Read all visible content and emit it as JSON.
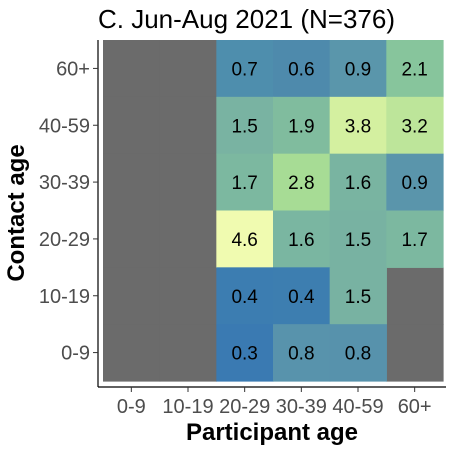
{
  "chart_data": {
    "type": "heatmap",
    "title": "C. Jun-Aug 2021 (N=376)",
    "xlabel": "Participant age",
    "ylabel": "Contact age",
    "x_categories": [
      "0-9",
      "10-19",
      "20-29",
      "30-39",
      "40-59",
      "60+"
    ],
    "y_categories": [
      "0-9",
      "10-19",
      "20-29",
      "30-39",
      "40-59",
      "60+"
    ],
    "missing_color": "#6b6b6b",
    "cells": [
      {
        "x": "20-29",
        "y": "60+",
        "value": 0.7,
        "color": "#4e8ead"
      },
      {
        "x": "30-39",
        "y": "60+",
        "value": 0.6,
        "color": "#4e8aac"
      },
      {
        "x": "40-59",
        "y": "60+",
        "value": 0.9,
        "color": "#5a96ab"
      },
      {
        "x": "60+",
        "y": "60+",
        "value": 2.1,
        "color": "#87c59c"
      },
      {
        "x": "20-29",
        "y": "40-59",
        "value": 1.5,
        "color": "#79b3a2"
      },
      {
        "x": "30-39",
        "y": "40-59",
        "value": 1.9,
        "color": "#80bc9e"
      },
      {
        "x": "40-59",
        "y": "40-59",
        "value": 3.8,
        "color": "#d4f0a0"
      },
      {
        "x": "60+",
        "y": "40-59",
        "value": 3.2,
        "color": "#bde59a"
      },
      {
        "x": "20-29",
        "y": "30-39",
        "value": 1.7,
        "color": "#7cb8a0"
      },
      {
        "x": "30-39",
        "y": "30-39",
        "value": 2.8,
        "color": "#a7dc95"
      },
      {
        "x": "40-59",
        "y": "30-39",
        "value": 1.6,
        "color": "#79b4a1"
      },
      {
        "x": "60+",
        "y": "30-39",
        "value": 0.9,
        "color": "#5a95ab"
      },
      {
        "x": "20-29",
        "y": "20-29",
        "value": 4.6,
        "color": "#f0fbb0"
      },
      {
        "x": "30-39",
        "y": "20-29",
        "value": 1.6,
        "color": "#7ab6a1"
      },
      {
        "x": "40-59",
        "y": "20-29",
        "value": 1.5,
        "color": "#78b2a2"
      },
      {
        "x": "60+",
        "y": "20-29",
        "value": 1.7,
        "color": "#7cb8a0"
      },
      {
        "x": "20-29",
        "y": "10-19",
        "value": 0.4,
        "color": "#3c7db1"
      },
      {
        "x": "30-39",
        "y": "10-19",
        "value": 0.4,
        "color": "#3d7eb0"
      },
      {
        "x": "40-59",
        "y": "10-19",
        "value": 1.5,
        "color": "#78b2a2"
      },
      {
        "x": "20-29",
        "y": "0-9",
        "value": 0.3,
        "color": "#3a7ab2"
      },
      {
        "x": "30-39",
        "y": "0-9",
        "value": 0.8,
        "color": "#5893ac"
      },
      {
        "x": "40-59",
        "y": "0-9",
        "value": 0.8,
        "color": "#5792ac"
      }
    ],
    "missing_cells": [
      {
        "x": "0-9",
        "y": "60+"
      },
      {
        "x": "0-9",
        "y": "40-59"
      },
      {
        "x": "0-9",
        "y": "30-39"
      },
      {
        "x": "0-9",
        "y": "20-29"
      },
      {
        "x": "0-9",
        "y": "10-19"
      },
      {
        "x": "0-9",
        "y": "0-9"
      },
      {
        "x": "10-19",
        "y": "60+"
      },
      {
        "x": "10-19",
        "y": "40-59"
      },
      {
        "x": "10-19",
        "y": "30-39"
      },
      {
        "x": "10-19",
        "y": "20-29"
      },
      {
        "x": "10-19",
        "y": "10-19"
      },
      {
        "x": "10-19",
        "y": "0-9"
      },
      {
        "x": "60+",
        "y": "10-19"
      },
      {
        "x": "60+",
        "y": "0-9"
      }
    ],
    "legend": "none",
    "grid": false
  }
}
